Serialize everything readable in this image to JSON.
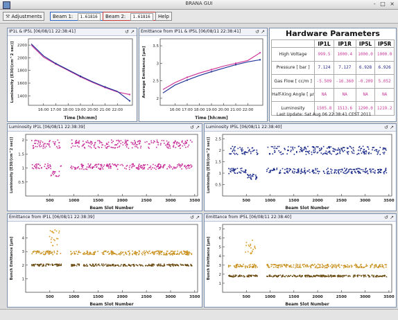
{
  "window": {
    "title": "BRANA GUI",
    "controls": "- □ ×"
  },
  "toolbar": {
    "adjustments_label": "Adjustments",
    "beam1_label": "Beam 1:",
    "beam1_value": "1.61816",
    "beam2_label": "Beam 2:",
    "beam2_value": "1.61816",
    "help_label": "Help"
  },
  "panel_icons": "↺ ↗",
  "panels": {
    "lumi_trend": {
      "title": "IP1L & IP5L [06/08/11 22:38:41]",
      "chart_data": {
        "type": "line",
        "xlabel": "Time [hh:mm]",
        "ylabel": "Luminosity [E30/(cm^2 sec)]",
        "x": [
          "14:00",
          "16:00",
          "17:00",
          "18:00",
          "19:00",
          "20:00",
          "21:00",
          "22:00",
          "22:40"
        ],
        "xticks": [
          "16:00",
          "17:00",
          "18:00",
          "19:00",
          "20:00",
          "21:00",
          "22:00"
        ],
        "yticks": [
          1400,
          1600,
          1800,
          2000,
          2200
        ],
        "ylim": [
          1250,
          2300
        ],
        "series": [
          {
            "color": "#d03a9c",
            "values": [
              2200,
              2010,
              1900,
              1800,
              1700,
              1610,
              1530,
              1460,
              1420
            ]
          },
          {
            "color": "#24359a",
            "values": [
              2220,
              2030,
              1910,
              1810,
              1710,
              1620,
              1540,
              1470,
              1320
            ]
          }
        ]
      }
    },
    "emittance_trend": {
      "title": "Emittance from IP1L & IP5L [06/08/11 22:38:41]",
      "chart_data": {
        "type": "line",
        "xlabel": "Time [hh:mm]",
        "ylabel": "Average Emittance [µm]",
        "x": [
          "14:00",
          "16:00",
          "17:00",
          "18:00",
          "19:00",
          "20:00",
          "21:00",
          "22:00",
          "22:40"
        ],
        "xticks": [
          "16:00",
          "17:00",
          "18:00",
          "19:00",
          "20:00",
          "21:00",
          "22:00"
        ],
        "yticks": [
          2,
          2.5,
          3,
          3.5
        ],
        "ylim": [
          1.8,
          3.7
        ],
        "series": [
          {
            "color": "#d03a9c",
            "values": [
              2.25,
              2.45,
              2.6,
              2.72,
              2.82,
              2.92,
              3.0,
              3.08,
              3.3
            ]
          },
          {
            "color": "#24359a",
            "values": [
              2.15,
              2.38,
              2.52,
              2.65,
              2.76,
              2.86,
              2.96,
              3.04,
              3.1
            ]
          }
        ]
      }
    },
    "hardware": {
      "title": "Hardware Parameters",
      "columns": [
        "",
        "IP1L",
        "IP1R",
        "IP5L",
        "IP5R"
      ],
      "rows": [
        {
          "label": "High Voltage",
          "values": [
            "999.5",
            "1000.4",
            "1000.0",
            "1000.0"
          ],
          "color": "#c83a9a"
        },
        {
          "label": "Pressure [ bar ]",
          "values": [
            "7.124",
            "7.127",
            "6.928",
            "6.926"
          ],
          "color": "#222288"
        },
        {
          "label": "Gas Flow [ cc/m ]",
          "values": [
            "-5.509",
            "-16.360",
            "-0.209",
            "5.052"
          ],
          "color": "#c83a9a"
        },
        {
          "label": "Half-Xing Angle [ µr",
          "values": [
            "NA",
            "NA",
            "NA",
            "NA"
          ],
          "color": "#c83a9a"
        },
        {
          "label": "Luminosity",
          "values": [
            "1505.8",
            "1513.6",
            "1290.0",
            "1219.2"
          ],
          "color": "#c83a9a"
        }
      ],
      "last_update": "Last Update:  Sat Aug 06 22:38:41 CEST 2011"
    },
    "lumi_ip1l": {
      "title": "Luminosity IP1L [06/08/11 22:38:39]",
      "chart_data": {
        "type": "scatter",
        "xlabel": "Beam Slot Number",
        "ylabel": "Luminosity [E30/(cm^2 sec)]",
        "xlim": [
          0,
          3560
        ],
        "ylim": [
          0,
          2.2
        ],
        "xticks": [
          500,
          1000,
          1500,
          2000,
          2500,
          3000,
          3500
        ],
        "yticks": [
          0.5,
          1,
          1.5,
          2
        ],
        "series": [
          {
            "color": "#c82d9a",
            "bands": [
              [
                1.05,
                0.1
              ],
              [
                1.85,
                0.15
              ]
            ],
            "xrange": [
              120,
              3450
            ]
          }
        ]
      }
    },
    "lumi_ip5l": {
      "title": "Luminosity IP5L [06/08/11 22:38:40]",
      "chart_data": {
        "type": "scatter",
        "xlabel": "Beam Slot Number",
        "ylabel": "Luminosity [E30/(cm^2 sec)]",
        "xlim": [
          0,
          3560
        ],
        "ylim": [
          0,
          2.7
        ],
        "xticks": [
          500,
          1000,
          1500,
          2000,
          2500,
          3000,
          3500
        ],
        "yticks": [
          0.5,
          1,
          1.5,
          2,
          2.5
        ],
        "series": [
          {
            "color": "#1a2a8a",
            "bands": [
              [
                1.1,
                0.12
              ],
              [
                2.0,
                0.18
              ]
            ],
            "xrange": [
              120,
              3450
            ]
          }
        ]
      }
    },
    "emit_ip1l": {
      "title": "Emittance from IP1L [06/08/11 22:38:39]",
      "chart_data": {
        "type": "scatter",
        "xlabel": "Beam Slot Number",
        "ylabel": "Bunch Emittance [µm]",
        "xlim": [
          0,
          3560
        ],
        "ylim": [
          0,
          5
        ],
        "xticks": [
          500,
          1000,
          1500,
          2000,
          2500,
          3000,
          3500
        ],
        "yticks": [
          1,
          2,
          3,
          4
        ],
        "series": [
          {
            "color": "#c9901c",
            "bands": [
              [
                2.9,
                0.15
              ]
            ],
            "xrange": [
              120,
              3450
            ]
          },
          {
            "color": "#6a4a10",
            "bands": [
              [
                2.0,
                0.08
              ]
            ],
            "xrange": [
              120,
              3450
            ]
          },
          {
            "color": "#d89a20",
            "bands": [
              [
                4.0,
                0.6
              ]
            ],
            "xrange": [
              480,
              720
            ]
          }
        ]
      }
    },
    "emit_ip5l": {
      "title": "Emittance from IP5L [06/08/11 22:38:40]",
      "chart_data": {
        "type": "scatter",
        "xlabel": "Beam Slot Number",
        "ylabel": "Bunch Emittance [µm]",
        "xlim": [
          0,
          3560
        ],
        "ylim": [
          0,
          7.5
        ],
        "xticks": [
          500,
          1000,
          1500,
          2000,
          2500,
          3000,
          3500
        ],
        "yticks": [
          1,
          2,
          3,
          4,
          5,
          6,
          7
        ],
        "series": [
          {
            "color": "#c9901c",
            "bands": [
              [
                2.9,
                0.2
              ]
            ],
            "xrange": [
              120,
              3450
            ]
          },
          {
            "color": "#6a4a10",
            "bands": [
              [
                1.8,
                0.1
              ]
            ],
            "xrange": [
              120,
              3450
            ]
          },
          {
            "color": "#d89a20",
            "bands": [
              [
                5.0,
                0.8
              ]
            ],
            "xrange": [
              480,
              720
            ]
          }
        ]
      }
    }
  }
}
